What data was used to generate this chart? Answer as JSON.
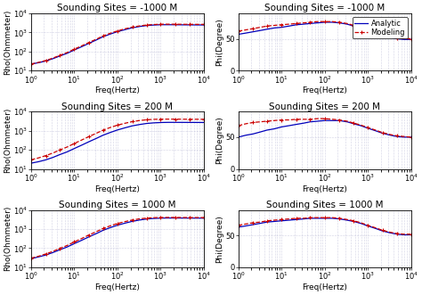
{
  "titles_rho": [
    "Sounding Sites = -1000 M",
    "Sounding Sites = 200 M",
    "Sounding Sites = 1000 M"
  ],
  "titles_phi": [
    "Sounding Sites = -1000 M",
    "Sounding Sites = 200 M",
    "Sounding Sites = 1000 M"
  ],
  "xlabel": "Freq(Hertz)",
  "ylabel_rho": "Rho(Ohmmeter)",
  "ylabel_phi": "Phi(Degree)",
  "freq": [
    1.0,
    1.5,
    2.2,
    3.2,
    4.6,
    6.8,
    10,
    15,
    22,
    33,
    46,
    68,
    100,
    150,
    220,
    330,
    470,
    680,
    1000,
    1500,
    2200,
    3300,
    4700,
    6800,
    10000
  ],
  "rho_analytic_m1000": [
    22,
    26,
    32,
    42,
    58,
    80,
    120,
    180,
    270,
    410,
    590,
    820,
    1100,
    1400,
    1750,
    2050,
    2280,
    2430,
    2530,
    2530,
    2520,
    2490,
    2480,
    2460,
    2450
  ],
  "rho_modeling_m1000": [
    22,
    27,
    34,
    45,
    63,
    88,
    133,
    200,
    300,
    450,
    650,
    900,
    1200,
    1550,
    1900,
    2200,
    2430,
    2580,
    2680,
    2700,
    2690,
    2660,
    2650,
    2640,
    2630
  ],
  "rho_analytic_200": [
    20,
    24,
    30,
    40,
    56,
    78,
    117,
    178,
    268,
    405,
    580,
    810,
    1100,
    1430,
    1800,
    2130,
    2400,
    2580,
    2700,
    2750,
    2750,
    2740,
    2730,
    2720,
    2710
  ],
  "rho_modeling_200": [
    30,
    38,
    50,
    68,
    98,
    140,
    215,
    330,
    500,
    750,
    1070,
    1480,
    1960,
    2470,
    3000,
    3450,
    3750,
    3950,
    4050,
    4050,
    4040,
    4010,
    4000,
    3990,
    3980
  ],
  "rho_analytic_1000": [
    28,
    35,
    44,
    59,
    82,
    115,
    173,
    262,
    394,
    594,
    855,
    1190,
    1600,
    2050,
    2540,
    3000,
    3360,
    3600,
    3750,
    3800,
    3790,
    3770,
    3760,
    3750,
    3740
  ],
  "rho_modeling_1000": [
    30,
    38,
    50,
    68,
    97,
    138,
    212,
    325,
    495,
    745,
    1065,
    1475,
    1960,
    2470,
    3000,
    3460,
    3760,
    3960,
    4060,
    4080,
    4070,
    4040,
    4030,
    4020,
    4010
  ],
  "phi_analytic_m1000": [
    57,
    59,
    61,
    63,
    65,
    67,
    68,
    70,
    72,
    73,
    74,
    75,
    76,
    76,
    75,
    73,
    70,
    67,
    63,
    59,
    55,
    52,
    50,
    49,
    49
  ],
  "phi_modeling_m1000": [
    62,
    64,
    66,
    68,
    70,
    71,
    72,
    73,
    74,
    75,
    76,
    77,
    77,
    77,
    76,
    74,
    71,
    68,
    64,
    60,
    56,
    53,
    51,
    50,
    50
  ],
  "phi_analytic_200": [
    50,
    53,
    55,
    58,
    61,
    63,
    66,
    68,
    70,
    72,
    74,
    75,
    76,
    76,
    76,
    74,
    71,
    68,
    64,
    60,
    56,
    53,
    51,
    50,
    50
  ],
  "phi_modeling_200": [
    68,
    71,
    73,
    74,
    75,
    76,
    77,
    77,
    78,
    78,
    78,
    79,
    79,
    78,
    77,
    75,
    72,
    69,
    65,
    61,
    57,
    54,
    52,
    51,
    50
  ],
  "phi_analytic_1000": [
    63,
    65,
    67,
    69,
    71,
    72,
    73,
    74,
    75,
    76,
    77,
    77,
    77,
    77,
    76,
    74,
    72,
    69,
    65,
    61,
    57,
    54,
    52,
    51,
    51
  ],
  "phi_modeling_1000": [
    66,
    68,
    70,
    71,
    73,
    74,
    75,
    76,
    77,
    77,
    78,
    78,
    78,
    78,
    77,
    75,
    73,
    70,
    66,
    62,
    58,
    55,
    53,
    52,
    52
  ],
  "color_analytic": "#0000bb",
  "color_modeling": "#cc0000",
  "bg_color": "#ffffff",
  "grid_color": "#aaaacc",
  "xlim": [
    1.0,
    10000
  ],
  "ylim_rho": [
    10,
    10000
  ],
  "ylim_phi": [
    0,
    90
  ],
  "title_fontsize": 7.5,
  "label_fontsize": 6.5,
  "tick_fontsize": 6,
  "legend_fontsize": 6
}
